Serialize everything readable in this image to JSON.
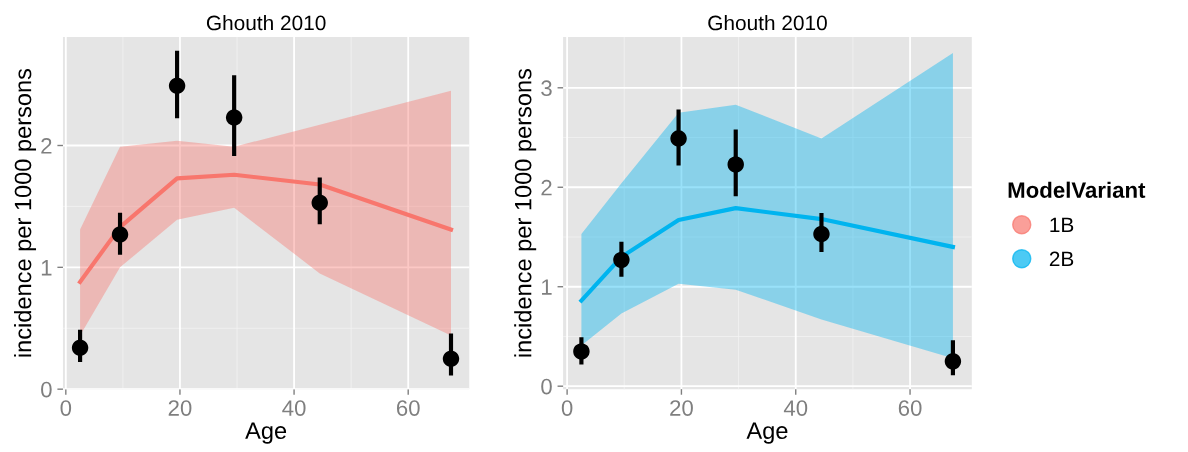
{
  "chart_data": [
    {
      "type": "line",
      "title": "Ghouth 2010",
      "xlabel": "Age",
      "ylabel": "incidence per 1000 persons",
      "xlim": [
        -0.5,
        70.7
      ],
      "xticks": [
        0,
        20,
        40,
        60
      ],
      "ylim": [
        0,
        2.89
      ],
      "yticks": [
        0,
        1,
        2
      ],
      "grid": true,
      "series": [
        {
          "name": "1B",
          "color": "#f8766d",
          "x": [
            2.5,
            9.5,
            19.5,
            29.5,
            44.5,
            67.5
          ],
          "values": [
            0.88,
            1.33,
            1.73,
            1.76,
            1.68,
            1.31
          ],
          "lower": [
            0.44,
            1.0,
            1.39,
            1.49,
            0.95,
            0.44
          ],
          "upper": [
            1.31,
            1.99,
            2.04,
            1.99,
            2.17,
            2.45
          ]
        },
        {
          "type": "scatter",
          "color": "#000000",
          "marker": "circle",
          "x": [
            2.5,
            9.5,
            19.5,
            29.5,
            44.5,
            67.5
          ],
          "values": [
            0.34,
            1.27,
            2.49,
            2.23,
            1.53,
            0.25
          ],
          "errors": [
            [
              0.24,
              0.47
            ],
            [
              1.12,
              1.43
            ],
            [
              2.24,
              2.76
            ],
            [
              1.93,
              2.56
            ],
            [
              1.37,
              1.72
            ],
            [
              0.13,
              0.44
            ]
          ]
        }
      ]
    },
    {
      "type": "line",
      "title": "Ghouth 2010",
      "xlabel": "Age",
      "ylabel": "incidence per 1000 persons",
      "xlim": [
        -0.7,
        70.8
      ],
      "xticks": [
        0,
        20,
        40,
        60
      ],
      "ylim": [
        -0.03,
        3.51
      ],
      "yticks": [
        0,
        1,
        2,
        3
      ],
      "grid": true,
      "legend": "right",
      "legend_title": "ModelVariant",
      "series": [
        {
          "name": "2B",
          "color": "#00b4ef",
          "x": [
            2.5,
            9.5,
            19.5,
            29.5,
            44.5,
            67.5
          ],
          "values": [
            0.86,
            1.3,
            1.67,
            1.79,
            1.68,
            1.4
          ],
          "lower": [
            0.41,
            0.73,
            1.03,
            0.97,
            0.67,
            0.28
          ],
          "upper": [
            1.53,
            2.04,
            2.75,
            2.83,
            2.49,
            3.35
          ]
        },
        {
          "type": "scatter",
          "color": "#000000",
          "marker": "circle",
          "x": [
            2.5,
            9.5,
            19.5,
            29.5,
            44.5,
            67.5
          ],
          "values": [
            0.35,
            1.27,
            2.49,
            2.23,
            1.53,
            0.25
          ],
          "errors": [
            [
              0.24,
              0.47
            ],
            [
              1.12,
              1.43
            ],
            [
              2.24,
              2.76
            ],
            [
              1.93,
              2.56
            ],
            [
              1.37,
              1.72
            ],
            [
              0.13,
              0.44
            ]
          ]
        }
      ]
    }
  ]
}
